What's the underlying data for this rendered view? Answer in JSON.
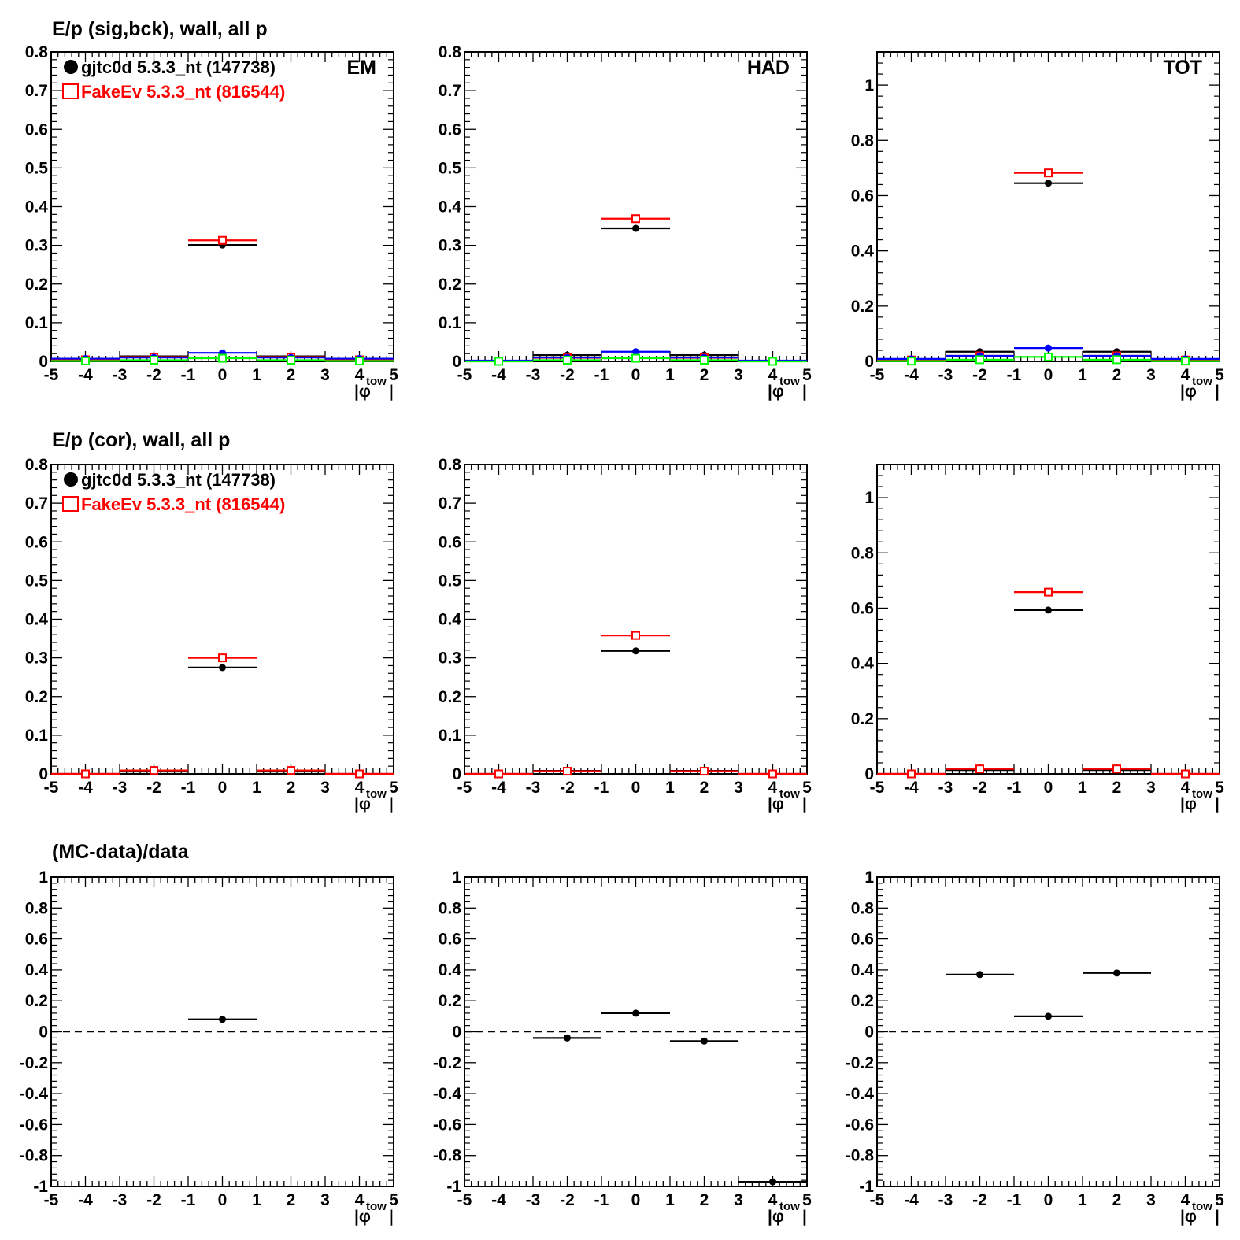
{
  "row_titles": [
    "E/p (sig,bck), wall, all p",
    "E/p (cor), wall, all p",
    "(MC-data)/data"
  ],
  "legend": [
    {
      "label": "gjtc0d 5.3.3_nt (147738)",
      "color": "#000000",
      "marker": "filled-circle"
    },
    {
      "label": "FakeEv 5.3.3_nt (816544)",
      "color": "#ff0000",
      "marker": "open-square"
    }
  ],
  "colors": {
    "data": "#000000",
    "mc": "#ff0000",
    "blue": "#0000ff",
    "green": "#00ff00",
    "axis": "#000000"
  },
  "x_axis_label": {
    "main": "|φ",
    "sub": "tow",
    "close": "|"
  },
  "chart_data": [
    {
      "id": "sigbck-em",
      "type": "scatter",
      "row": 0,
      "col": 0,
      "corner_label": "EM",
      "legend": true,
      "xlim": [
        -5,
        5
      ],
      "ylim": [
        0,
        0.8
      ],
      "xticks": [
        -5,
        -4,
        -3,
        -2,
        -1,
        0,
        1,
        2,
        3,
        4,
        5
      ],
      "yticks": [
        0,
        0.1,
        0.2,
        0.3,
        0.4,
        0.5,
        0.6,
        0.7,
        0.8
      ],
      "ytick_labels": [
        "0",
        "0.1",
        "0.2",
        "0.3",
        "0.4",
        "0.5",
        "0.6",
        "0.7",
        "0.8"
      ],
      "series": [
        {
          "name": "gjtc0d 5.3.3_nt (147738)",
          "color": "#000000",
          "marker": "filled-circle",
          "points": [
            {
              "x": -4,
              "y": 0.003
            },
            {
              "x": -2,
              "y": 0.013
            },
            {
              "x": 0,
              "y": 0.301
            },
            {
              "x": 2,
              "y": 0.013
            },
            {
              "x": 4,
              "y": 0.003
            }
          ]
        },
        {
          "name": "FakeEv 5.3.3_nt (816544)",
          "color": "#ff0000",
          "marker": "open-square",
          "points": [
            {
              "x": -4,
              "y": 0.004
            },
            {
              "x": -2,
              "y": 0.011
            },
            {
              "x": 0,
              "y": 0.313
            },
            {
              "x": 2,
              "y": 0.011
            },
            {
              "x": 4,
              "y": 0.004
            }
          ]
        },
        {
          "color": "#0000ff",
          "marker": "filled-circle",
          "points": [
            {
              "x": -4,
              "y": 0.007
            },
            {
              "x": -2,
              "y": 0.01
            },
            {
              "x": 0,
              "y": 0.022
            },
            {
              "x": 2,
              "y": 0.01
            },
            {
              "x": 4,
              "y": 0.007
            }
          ]
        },
        {
          "color": "#00ff00",
          "marker": "open-square",
          "points": [
            {
              "x": -4,
              "y": 0.001
            },
            {
              "x": -2,
              "y": 0.003
            },
            {
              "x": 0,
              "y": 0.008
            },
            {
              "x": 2,
              "y": 0.003
            },
            {
              "x": 4,
              "y": 0.001
            }
          ]
        }
      ]
    },
    {
      "id": "sigbck-had",
      "type": "scatter",
      "row": 0,
      "col": 1,
      "corner_label": "HAD",
      "legend": false,
      "xlim": [
        -5,
        5
      ],
      "ylim": [
        0,
        0.8
      ],
      "xticks": [
        -5,
        -4,
        -3,
        -2,
        -1,
        0,
        1,
        2,
        3,
        4,
        5
      ],
      "yticks": [
        0,
        0.1,
        0.2,
        0.3,
        0.4,
        0.5,
        0.6,
        0.7,
        0.8
      ],
      "ytick_labels": [
        "0",
        "0.1",
        "0.2",
        "0.3",
        "0.4",
        "0.5",
        "0.6",
        "0.7",
        "0.8"
      ],
      "series": [
        {
          "name": "gjtc0d 5.3.3_nt (147738)",
          "color": "#000000",
          "marker": "filled-circle",
          "points": [
            {
              "x": -4,
              "y": 0.001
            },
            {
              "x": -2,
              "y": 0.016
            },
            {
              "x": 0,
              "y": 0.344
            },
            {
              "x": 2,
              "y": 0.016
            },
            {
              "x": 4,
              "y": 0.001
            }
          ]
        },
        {
          "name": "FakeEv 5.3.3_nt (816544)",
          "color": "#ff0000",
          "marker": "open-square",
          "points": [
            {
              "x": -4,
              "y": 0.001
            },
            {
              "x": -2,
              "y": 0.009
            },
            {
              "x": 0,
              "y": 0.369
            },
            {
              "x": 2,
              "y": 0.009
            },
            {
              "x": 4,
              "y": 0.001
            }
          ]
        },
        {
          "color": "#0000ff",
          "marker": "filled-circle",
          "points": [
            {
              "x": -4,
              "y": 0.002
            },
            {
              "x": -2,
              "y": 0.01
            },
            {
              "x": 0,
              "y": 0.025
            },
            {
              "x": 2,
              "y": 0.01
            },
            {
              "x": 4,
              "y": 0.002
            }
          ]
        },
        {
          "color": "#00ff00",
          "marker": "open-square",
          "points": [
            {
              "x": -4,
              "y": 0.0
            },
            {
              "x": -2,
              "y": 0.003
            },
            {
              "x": 0,
              "y": 0.008
            },
            {
              "x": 2,
              "y": 0.003
            },
            {
              "x": 4,
              "y": 0.0
            }
          ]
        }
      ]
    },
    {
      "id": "sigbck-tot",
      "type": "scatter",
      "row": 0,
      "col": 2,
      "corner_label": "TOT",
      "legend": false,
      "xlim": [
        -5,
        5
      ],
      "ylim": [
        0,
        1.12
      ],
      "xticks": [
        -5,
        -4,
        -3,
        -2,
        -1,
        0,
        1,
        2,
        3,
        4,
        5
      ],
      "yticks": [
        0,
        0.2,
        0.4,
        0.6,
        0.8,
        1
      ],
      "ytick_labels": [
        "0",
        "0.2",
        "0.4",
        "0.6",
        "0.8",
        "1"
      ],
      "series": [
        {
          "name": "gjtc0d 5.3.3_nt (147738)",
          "color": "#000000",
          "marker": "filled-circle",
          "points": [
            {
              "x": -4,
              "y": 0.004
            },
            {
              "x": -2,
              "y": 0.035
            },
            {
              "x": 0,
              "y": 0.645
            },
            {
              "x": 2,
              "y": 0.035
            },
            {
              "x": 4,
              "y": 0.004
            }
          ]
        },
        {
          "name": "FakeEv 5.3.3_nt (816544)",
          "color": "#ff0000",
          "marker": "open-square",
          "points": [
            {
              "x": -4,
              "y": 0.005
            },
            {
              "x": -2,
              "y": 0.02
            },
            {
              "x": 0,
              "y": 0.682
            },
            {
              "x": 2,
              "y": 0.02
            },
            {
              "x": 4,
              "y": 0.005
            }
          ]
        },
        {
          "color": "#0000ff",
          "marker": "filled-circle",
          "points": [
            {
              "x": -4,
              "y": 0.009
            },
            {
              "x": -2,
              "y": 0.02
            },
            {
              "x": 0,
              "y": 0.048
            },
            {
              "x": 2,
              "y": 0.02
            },
            {
              "x": 4,
              "y": 0.009
            }
          ]
        },
        {
          "color": "#00ff00",
          "marker": "open-square",
          "points": [
            {
              "x": -4,
              "y": 0.001
            },
            {
              "x": -2,
              "y": 0.006
            },
            {
              "x": 0,
              "y": 0.016
            },
            {
              "x": 2,
              "y": 0.006
            },
            {
              "x": 4,
              "y": 0.001
            }
          ]
        }
      ]
    },
    {
      "id": "cor-em",
      "type": "scatter",
      "row": 1,
      "col": 0,
      "corner_label": "",
      "legend": true,
      "xlim": [
        -5,
        5
      ],
      "ylim": [
        0,
        0.8
      ],
      "xticks": [
        -5,
        -4,
        -3,
        -2,
        -1,
        0,
        1,
        2,
        3,
        4,
        5
      ],
      "yticks": [
        0,
        0.1,
        0.2,
        0.3,
        0.4,
        0.5,
        0.6,
        0.7,
        0.8
      ],
      "ytick_labels": [
        "0",
        "0.1",
        "0.2",
        "0.3",
        "0.4",
        "0.5",
        "0.6",
        "0.7",
        "0.8"
      ],
      "series": [
        {
          "name": "gjtc0d 5.3.3_nt (147738)",
          "color": "#000000",
          "marker": "filled-circle",
          "points": [
            {
              "x": -4,
              "y": -0.002
            },
            {
              "x": -2,
              "y": 0.006
            },
            {
              "x": 0,
              "y": 0.275
            },
            {
              "x": 2,
              "y": 0.006
            },
            {
              "x": 4,
              "y": -0.002
            }
          ]
        },
        {
          "name": "FakeEv 5.3.3_nt (816544)",
          "color": "#ff0000",
          "marker": "open-square",
          "points": [
            {
              "x": -4,
              "y": -0.001
            },
            {
              "x": -2,
              "y": 0.009
            },
            {
              "x": 0,
              "y": 0.3
            },
            {
              "x": 2,
              "y": 0.009
            },
            {
              "x": 4,
              "y": -0.001
            }
          ]
        }
      ]
    },
    {
      "id": "cor-had",
      "type": "scatter",
      "row": 1,
      "col": 1,
      "corner_label": "",
      "legend": false,
      "xlim": [
        -5,
        5
      ],
      "ylim": [
        0,
        0.8
      ],
      "xticks": [
        -5,
        -4,
        -3,
        -2,
        -1,
        0,
        1,
        2,
        3,
        4,
        5
      ],
      "yticks": [
        0,
        0.1,
        0.2,
        0.3,
        0.4,
        0.5,
        0.6,
        0.7,
        0.8
      ],
      "ytick_labels": [
        "0",
        "0.1",
        "0.2",
        "0.3",
        "0.4",
        "0.5",
        "0.6",
        "0.7",
        "0.8"
      ],
      "series": [
        {
          "name": "gjtc0d 5.3.3_nt (147738)",
          "color": "#000000",
          "marker": "filled-circle",
          "points": [
            {
              "x": -4,
              "y": -0.002
            },
            {
              "x": -2,
              "y": 0.008
            },
            {
              "x": 0,
              "y": 0.318
            },
            {
              "x": 2,
              "y": 0.008
            },
            {
              "x": 4,
              "y": -0.002
            }
          ]
        },
        {
          "name": "FakeEv 5.3.3_nt (816544)",
          "color": "#ff0000",
          "marker": "open-square",
          "points": [
            {
              "x": -4,
              "y": -0.001
            },
            {
              "x": -2,
              "y": 0.007
            },
            {
              "x": 0,
              "y": 0.358
            },
            {
              "x": 2,
              "y": 0.007
            },
            {
              "x": 4,
              "y": -0.001
            }
          ]
        }
      ]
    },
    {
      "id": "cor-tot",
      "type": "scatter",
      "row": 1,
      "col": 2,
      "corner_label": "",
      "legend": false,
      "xlim": [
        -5,
        5
      ],
      "ylim": [
        0,
        1.12
      ],
      "xticks": [
        -5,
        -4,
        -3,
        -2,
        -1,
        0,
        1,
        2,
        3,
        4,
        5
      ],
      "yticks": [
        0,
        0.2,
        0.4,
        0.6,
        0.8,
        1
      ],
      "ytick_labels": [
        "0",
        "0.2",
        "0.4",
        "0.6",
        "0.8",
        "1"
      ],
      "series": [
        {
          "name": "gjtc0d 5.3.3_nt (147738)",
          "color": "#000000",
          "marker": "filled-circle",
          "points": [
            {
              "x": -4,
              "y": -0.003
            },
            {
              "x": -2,
              "y": 0.014
            },
            {
              "x": 0,
              "y": 0.593
            },
            {
              "x": 2,
              "y": 0.014
            },
            {
              "x": 4,
              "y": -0.003
            }
          ]
        },
        {
          "name": "FakeEv 5.3.3_nt (816544)",
          "color": "#ff0000",
          "marker": "open-square",
          "points": [
            {
              "x": -4,
              "y": -0.002
            },
            {
              "x": -2,
              "y": 0.018
            },
            {
              "x": 0,
              "y": 0.658
            },
            {
              "x": 2,
              "y": 0.018
            },
            {
              "x": 4,
              "y": -0.002
            }
          ]
        }
      ]
    },
    {
      "id": "ratio-em",
      "type": "scatter",
      "row": 2,
      "col": 0,
      "corner_label": "",
      "legend": false,
      "dashed_zero": true,
      "xlim": [
        -5,
        5
      ],
      "ylim": [
        -1,
        1
      ],
      "xticks": [
        -5,
        -4,
        -3,
        -2,
        -1,
        0,
        1,
        2,
        3,
        4,
        5
      ],
      "yticks": [
        -1,
        -0.8,
        -0.6,
        -0.4,
        -0.2,
        0,
        0.2,
        0.4,
        0.6,
        0.8,
        1
      ],
      "ytick_labels": [
        "-1",
        "-0.8",
        "-0.6",
        "-0.4",
        "-0.2",
        "0",
        "0.2",
        "0.4",
        "0.6",
        "0.8",
        "1"
      ],
      "series": [
        {
          "color": "#000000",
          "marker": "filled-circle",
          "points": [
            {
              "x": 0,
              "y": 0.08
            }
          ]
        }
      ]
    },
    {
      "id": "ratio-had",
      "type": "scatter",
      "row": 2,
      "col": 1,
      "corner_label": "",
      "legend": false,
      "dashed_zero": true,
      "xlim": [
        -5,
        5
      ],
      "ylim": [
        -1,
        1
      ],
      "xticks": [
        -5,
        -4,
        -3,
        -2,
        -1,
        0,
        1,
        2,
        3,
        4,
        5
      ],
      "yticks": [
        -1,
        -0.8,
        -0.6,
        -0.4,
        -0.2,
        0,
        0.2,
        0.4,
        0.6,
        0.8,
        1
      ],
      "ytick_labels": [
        "-1",
        "-0.8",
        "-0.6",
        "-0.4",
        "-0.2",
        "0",
        "0.2",
        "0.4",
        "0.6",
        "0.8",
        "1"
      ],
      "series": [
        {
          "color": "#000000",
          "marker": "filled-circle",
          "points": [
            {
              "x": -2,
              "y": -0.04
            },
            {
              "x": 0,
              "y": 0.12
            },
            {
              "x": 2,
              "y": -0.06
            },
            {
              "x": 4,
              "y": -0.97
            }
          ]
        }
      ]
    },
    {
      "id": "ratio-tot",
      "type": "scatter",
      "row": 2,
      "col": 2,
      "corner_label": "",
      "legend": false,
      "dashed_zero": true,
      "xlim": [
        -5,
        5
      ],
      "ylim": [
        -1,
        1
      ],
      "xticks": [
        -5,
        -4,
        -3,
        -2,
        -1,
        0,
        1,
        2,
        3,
        4,
        5
      ],
      "yticks": [
        -1,
        -0.8,
        -0.6,
        -0.4,
        -0.2,
        0,
        0.2,
        0.4,
        0.6,
        0.8,
        1
      ],
      "ytick_labels": [
        "-1",
        "-0.8",
        "-0.6",
        "-0.4",
        "-0.2",
        "0",
        "0.2",
        "0.4",
        "0.6",
        "0.8",
        "1"
      ],
      "series": [
        {
          "color": "#000000",
          "marker": "filled-circle",
          "points": [
            {
              "x": -2,
              "y": 0.37
            },
            {
              "x": 0,
              "y": 0.1
            },
            {
              "x": 2,
              "y": 0.38
            }
          ]
        }
      ]
    }
  ]
}
